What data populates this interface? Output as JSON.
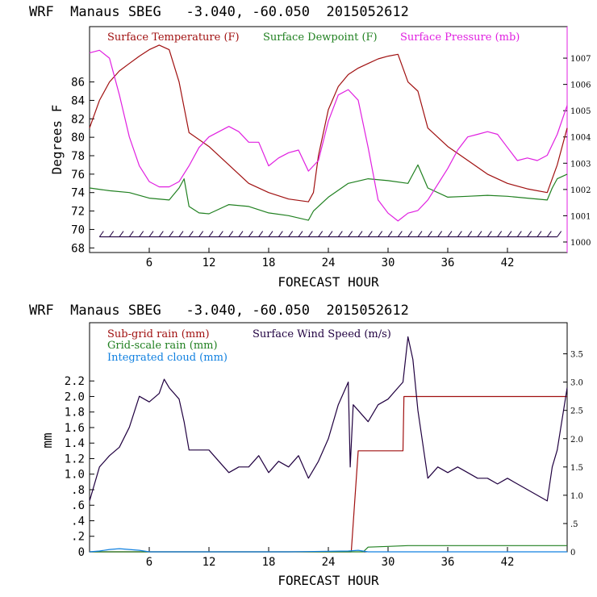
{
  "chart_data": [
    {
      "type": "line",
      "title": "WRF  Manaus SBEG   -3.040, -60.050  2015052612",
      "xlabel": "FORECAST HOUR",
      "ylabel": "Degrees F",
      "xlim": [
        0,
        48
      ],
      "ylim": [
        67.5,
        92
      ],
      "y2lim": [
        999.6,
        1008.2
      ],
      "xticks": [
        "6",
        "12",
        "18",
        "24",
        "30",
        "36",
        "42"
      ],
      "yticks": [
        "68",
        "70",
        "72",
        "74",
        "76",
        "78",
        "80",
        "82",
        "84",
        "86"
      ],
      "y2ticks": [
        "1000",
        "1001",
        "1002",
        "1003",
        "1004",
        "1005",
        "1006",
        "1007"
      ],
      "legend": [
        "Surface Temperature (F)",
        "Surface Dewpoint (F)",
        "Surface Pressure (mb)"
      ],
      "colors": {
        "temperature": "#a01010",
        "dewpoint": "#208020",
        "pressure": "#e020e0",
        "wind": "#200040"
      },
      "series": [
        {
          "name": "Surface Temperature (F)",
          "axis": "left",
          "x": [
            0,
            1,
            2,
            3,
            4,
            5,
            6,
            7,
            8,
            9,
            10,
            12,
            14,
            16,
            18,
            20,
            22,
            22.5,
            23,
            24,
            25,
            26,
            27,
            28,
            29,
            30,
            31,
            32,
            33,
            34,
            36,
            38,
            40,
            42,
            44,
            46,
            47,
            48
          ],
          "values": [
            81,
            84,
            86,
            87.2,
            88,
            88.8,
            89.5,
            90,
            89.5,
            86,
            80.5,
            79,
            77,
            75,
            74,
            73.3,
            73,
            74,
            78,
            83,
            85.5,
            86.8,
            87.5,
            88,
            88.5,
            88.8,
            89,
            86,
            85,
            81,
            79,
            77.5,
            76,
            75,
            74.4,
            74,
            77,
            81
          ]
        },
        {
          "name": "Surface Dewpoint (F)",
          "axis": "left",
          "x": [
            0,
            2,
            4,
            6,
            8,
            9,
            9.5,
            10,
            11,
            12,
            14,
            16,
            18,
            20,
            22,
            22.5,
            24,
            26,
            28,
            30,
            32,
            33,
            34,
            36,
            38,
            40,
            42,
            44,
            46,
            46.5,
            47,
            48
          ],
          "values": [
            74.5,
            74.2,
            74,
            73.4,
            73.2,
            74.5,
            75.5,
            72.5,
            71.8,
            71.7,
            72.7,
            72.5,
            71.8,
            71.5,
            71,
            72,
            73.5,
            75,
            75.5,
            75.3,
            75,
            77,
            74.5,
            73.5,
            73.6,
            73.7,
            73.6,
            73.4,
            73.2,
            74.5,
            75.5,
            76
          ]
        },
        {
          "name": "Surface Pressure (mb)",
          "axis": "right",
          "x": [
            0,
            1,
            2,
            3,
            4,
            5,
            6,
            7,
            8,
            9,
            10,
            11,
            12,
            13,
            14,
            15,
            16,
            17,
            18,
            19,
            20,
            21,
            22,
            23,
            24,
            25,
            26,
            27,
            28,
            29,
            30,
            31,
            32,
            33,
            34,
            35,
            36,
            37,
            38,
            39,
            40,
            41,
            42,
            43,
            44,
            45,
            46,
            47,
            48
          ],
          "values": [
            1007.2,
            1007.3,
            1007,
            1005.6,
            1004,
            1002.9,
            1002.3,
            1002.1,
            1002.1,
            1002.3,
            1002.9,
            1003.6,
            1004,
            1004.2,
            1004.4,
            1004.2,
            1003.8,
            1003.8,
            1002.9,
            1003.2,
            1003.4,
            1003.5,
            1002.7,
            1003.1,
            1004.6,
            1005.6,
            1005.8,
            1005.4,
            1003.6,
            1001.6,
            1001.1,
            1000.8,
            1001.1,
            1001.2,
            1001.6,
            1002.2,
            1002.8,
            1003.5,
            1004,
            1004.1,
            1004.2,
            1004.1,
            1003.6,
            1003.1,
            1003.2,
            1003.1,
            1003.3,
            1004.1,
            1005.2
          ]
        }
      ],
      "wind_barbs": {
        "y": 69.2,
        "count": 48
      }
    },
    {
      "type": "line",
      "title": "WRF  Manaus SBEG   -3.040, -60.050  2015052612",
      "xlabel": "FORECAST HOUR",
      "ylabel": "mm",
      "xlim": [
        0,
        48
      ],
      "ylim": [
        0,
        2.95
      ],
      "y2lim": [
        0,
        4.05
      ],
      "xticks": [
        "6",
        "12",
        "18",
        "24",
        "30",
        "36",
        "42"
      ],
      "yticks": [
        "0",
        ".2",
        ".4",
        ".6",
        ".8",
        "1.0",
        "1.2",
        "1.4",
        "1.6",
        "1.8",
        "2.0",
        "2.2"
      ],
      "y2ticks": [
        "0",
        ".5",
        "1.0",
        "1.5",
        "2.0",
        "2.5",
        "3.0",
        "3.5"
      ],
      "legend": [
        "Sub-grid rain (mm)",
        "Surface Wind Speed (m/s)",
        "Grid-scale rain (mm)",
        "Integrated cloud (mm)"
      ],
      "colors": {
        "subgrid": "#a01010",
        "wind": "#200040",
        "gridscale": "#208020",
        "cloud": "#1080e0"
      },
      "series": [
        {
          "name": "Sub-grid rain (mm)",
          "axis": "left",
          "x": [
            0,
            26.3,
            27,
            28,
            29,
            30,
            31.5,
            31.6,
            32,
            33,
            40,
            48
          ],
          "values": [
            0,
            0,
            1.3,
            1.3,
            1.3,
            1.3,
            1.3,
            2.0,
            2.0,
            2.0,
            2.0,
            2.0
          ]
        },
        {
          "name": "Grid-scale rain (mm)",
          "axis": "left",
          "x": [
            0,
            27.5,
            28,
            30,
            32,
            36,
            40,
            48
          ],
          "values": [
            0,
            0,
            0.06,
            0.07,
            0.08,
            0.08,
            0.08,
            0.08
          ]
        },
        {
          "name": "Integrated cloud (mm)",
          "axis": "left",
          "x": [
            0,
            1,
            2,
            3,
            4,
            5,
            6,
            10,
            20,
            26,
            27,
            28,
            48
          ],
          "values": [
            0,
            0.01,
            0.03,
            0.04,
            0.03,
            0.02,
            0,
            0,
            0,
            0.01,
            0.02,
            0,
            0
          ]
        },
        {
          "name": "Surface Wind Speed (m/s)",
          "axis": "right",
          "x": [
            0,
            1,
            2,
            3,
            4,
            5,
            6,
            7,
            7.5,
            8,
            9,
            9.5,
            10,
            11,
            12,
            13,
            14,
            15,
            16,
            17,
            18,
            19,
            20,
            21,
            22,
            23,
            24,
            25,
            26,
            26.2,
            26.5,
            27,
            28,
            29,
            30,
            31,
            31.5,
            32,
            32.5,
            33,
            34,
            35,
            36,
            37,
            38,
            39,
            40,
            41,
            42,
            43,
            44,
            45,
            46,
            46.5,
            47,
            48
          ],
          "values": [
            0.9,
            1.5,
            1.7,
            1.85,
            2.2,
            2.75,
            2.65,
            2.8,
            3.05,
            2.9,
            2.7,
            2.3,
            1.8,
            1.8,
            1.8,
            1.6,
            1.4,
            1.5,
            1.5,
            1.7,
            1.4,
            1.6,
            1.5,
            1.7,
            1.3,
            1.6,
            2.0,
            2.6,
            3.0,
            1.5,
            2.6,
            2.5,
            2.3,
            2.6,
            2.7,
            2.9,
            3.0,
            3.8,
            3.4,
            2.5,
            1.3,
            1.5,
            1.4,
            1.5,
            1.4,
            1.3,
            1.3,
            1.2,
            1.3,
            1.2,
            1.1,
            1.0,
            0.9,
            1.5,
            1.8,
            2.9
          ]
        }
      ]
    }
  ]
}
